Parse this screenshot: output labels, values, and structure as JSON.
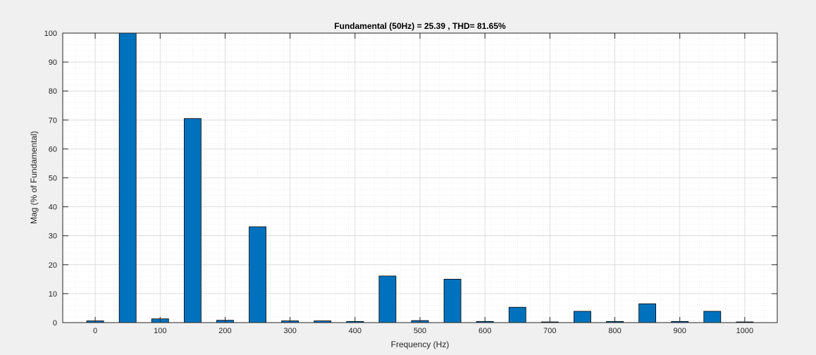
{
  "chart_data": {
    "type": "bar",
    "title": "Fundamental (50Hz) = 25.39 , THD= 81.65%",
    "xlabel": "Frequency (Hz)",
    "ylabel": "Mag (% of Fundamental)",
    "xlim": [
      -50,
      1050
    ],
    "ylim": [
      0,
      100
    ],
    "xticks": [
      0,
      100,
      200,
      300,
      400,
      500,
      600,
      700,
      800,
      900,
      1000
    ],
    "yticks": [
      0,
      10,
      20,
      30,
      40,
      50,
      60,
      70,
      80,
      90,
      100
    ],
    "grid": true,
    "minor_grid": true,
    "bar_color": "#0072bd",
    "x": [
      0,
      50,
      100,
      150,
      200,
      250,
      300,
      350,
      400,
      450,
      500,
      550,
      600,
      650,
      700,
      750,
      800,
      850,
      900,
      950,
      1000
    ],
    "values": [
      0.6,
      100,
      1.3,
      70.5,
      0.8,
      33.1,
      0.6,
      0.6,
      0.4,
      16.1,
      0.7,
      15.0,
      0.4,
      5.3,
      0.2,
      3.9,
      0.4,
      6.5,
      0.4,
      3.9,
      0.2
    ]
  }
}
